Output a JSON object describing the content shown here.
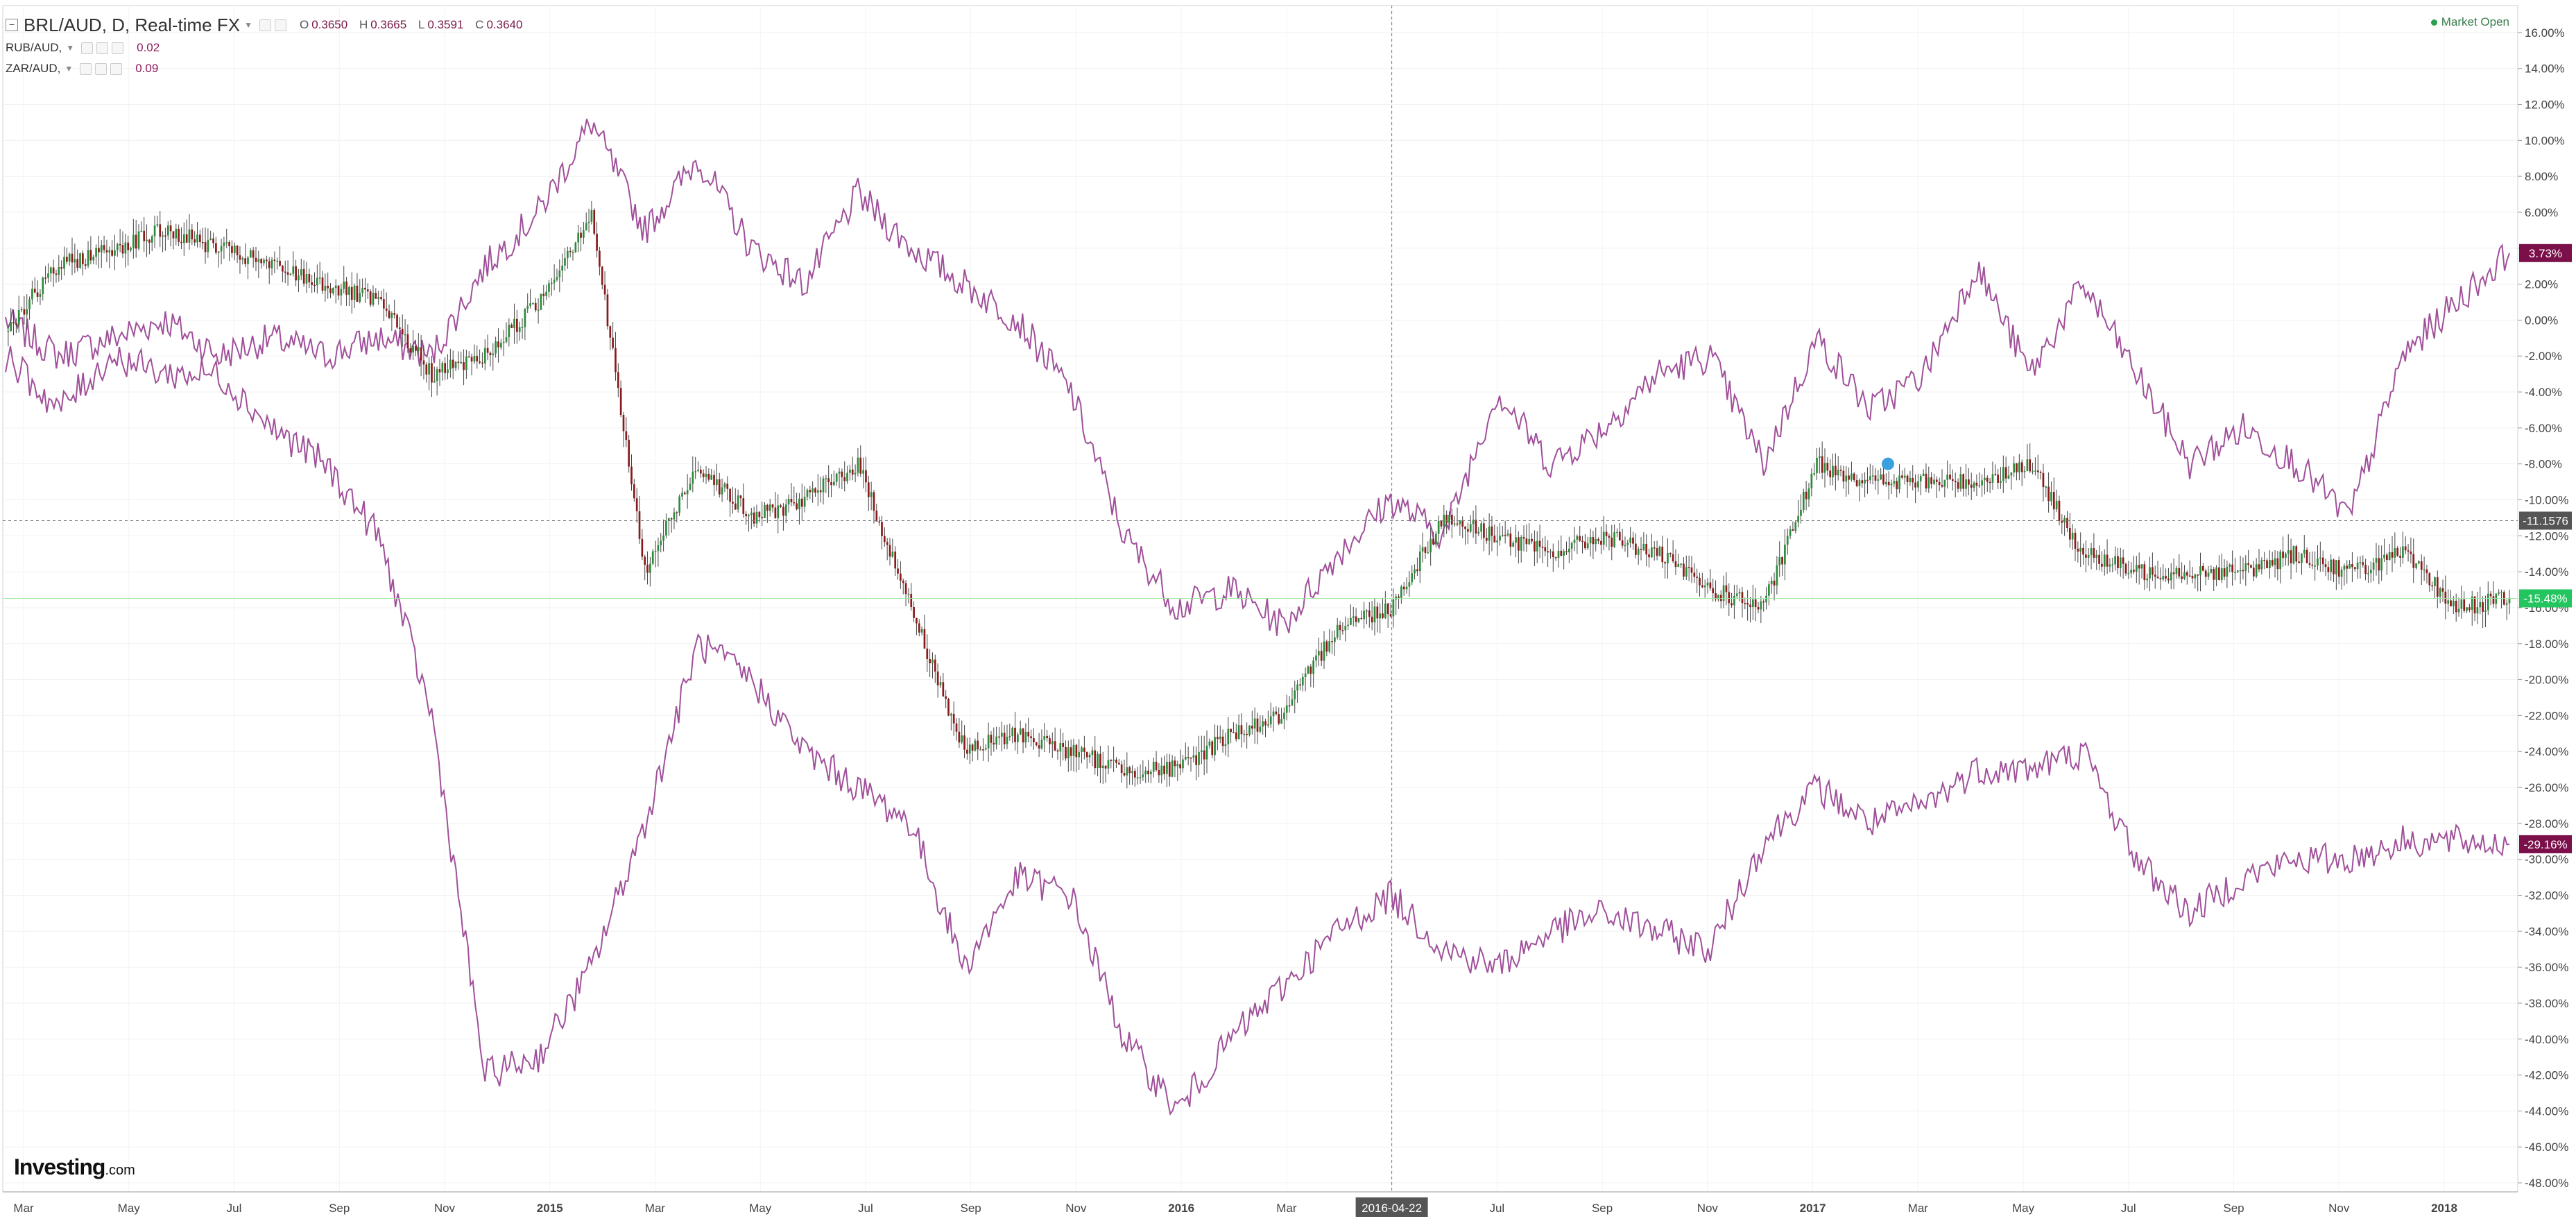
{
  "header": {
    "symbol": "BRL/AUD, D, Real-time FX",
    "ohlc": {
      "o_label": "O",
      "o": "0.3650",
      "h_label": "H",
      "h": "0.3665",
      "l_label": "L",
      "l": "0.3591",
      "c_label": "C",
      "c": "0.3640"
    },
    "compare": [
      {
        "symbol": "RUB/AUD,",
        "value": "0.02"
      },
      {
        "symbol": "ZAR/AUD,",
        "value": "0.09"
      }
    ],
    "market_status": "Market Open"
  },
  "logo": {
    "brand": "Investing",
    "suffix": ".com"
  },
  "colors": {
    "up": "#2e8b3a",
    "down": "#8b1a1a",
    "compare": "#a0509a",
    "last_price": "#22c55e",
    "compare_badge": "#7a0f4a",
    "crosshair": "#777777"
  },
  "chart_data": {
    "type": "line",
    "title": "BRL/AUD, D, Real-time FX",
    "xlabel": "",
    "ylabel": "",
    "x_tick_labels": [
      "Mar",
      "May",
      "Jul",
      "Sep",
      "Nov",
      "2015",
      "Mar",
      "May",
      "Jul",
      "Sep",
      "Nov",
      "2016",
      "Mar",
      "2016-04-22",
      "Jul",
      "Sep",
      "Nov",
      "2017",
      "Mar",
      "May",
      "Jul",
      "Sep",
      "Nov",
      "2018"
    ],
    "bold_x_ticks": [
      "2015",
      "2016",
      "2017",
      "2018"
    ],
    "y_ticks": [
      "16.00%",
      "14.00%",
      "12.00%",
      "10.00%",
      "8.00%",
      "6.00%",
      "4.00%",
      "2.00%",
      "0.00%",
      "-2.00%",
      "-4.00%",
      "-6.00%",
      "-8.00%",
      "-10.00%",
      "-12.00%",
      "-14.00%",
      "-16.00%",
      "-18.00%",
      "-20.00%",
      "-22.00%",
      "-24.00%",
      "-26.00%",
      "-28.00%",
      "-30.00%",
      "-32.00%",
      "-34.00%",
      "-36.00%",
      "-38.00%",
      "-40.00%",
      "-42.00%",
      "-44.00%",
      "-46.00%",
      "-48.00%"
    ],
    "ylim": [
      -48.5,
      17.5
    ],
    "y_unit": "%",
    "grid": true,
    "badges": [
      {
        "label": "3.73%",
        "value": 3.73,
        "series": "RUB/AUD"
      },
      {
        "label": "-11.1576",
        "value": -11.1576,
        "series": "crosshair"
      },
      {
        "label": "-15.48%",
        "value": -15.48,
        "series": "BRL/AUD"
      },
      {
        "label": "-29.16%",
        "value": -29.16,
        "series": "ZAR/AUD"
      }
    ],
    "crosshair": {
      "date_label": "2016-04-22",
      "value": -11.1576
    },
    "series": [
      {
        "name": "BRL/AUD",
        "style": "candlestick",
        "x": [
          "Mar",
          "Apr",
          "May",
          "Jun",
          "Jul",
          "Aug",
          "Sep",
          "Oct",
          "Nov",
          "Dec",
          "2015",
          "Feb",
          "Mar",
          "Apr",
          "May",
          "Jun",
          "Jul",
          "Aug",
          "Sep",
          "Oct",
          "Nov",
          "Dec",
          "2016",
          "Feb",
          "Mar",
          "Apr",
          "May",
          "Jun",
          "Jul",
          "Aug",
          "Sep",
          "Oct",
          "Nov",
          "Dec",
          "2017",
          "Feb",
          "Mar",
          "Apr",
          "May",
          "Jun",
          "Jul",
          "Aug",
          "Sep",
          "Oct",
          "Nov",
          "Dec",
          "2018",
          "Feb"
        ],
        "values": [
          -0.5,
          3,
          4,
          5,
          4,
          3,
          2,
          1,
          -3,
          -2,
          1,
          6,
          -14,
          -8,
          -11,
          -10,
          -8,
          -16,
          -24,
          -23,
          -24,
          -25,
          -25,
          -23,
          -22,
          -17,
          -16,
          -11,
          -12,
          -13,
          -12,
          -13,
          -15,
          -16,
          -8,
          -9,
          -9,
          -9,
          -8,
          -13,
          -14,
          -14,
          -14,
          -13,
          -14,
          -13,
          -16,
          -15.48
        ]
      },
      {
        "name": "RUB/AUD",
        "style": "line",
        "x": [
          "Mar",
          "Apr",
          "May",
          "Jun",
          "Jul",
          "Aug",
          "Sep",
          "Oct",
          "Nov",
          "Dec",
          "2015",
          "Feb",
          "Mar",
          "Apr",
          "May",
          "Jun",
          "Jul",
          "Aug",
          "Sep",
          "Oct",
          "Nov",
          "Dec",
          "2016",
          "Feb",
          "Mar",
          "Apr",
          "May",
          "Jun",
          "Jul",
          "Aug",
          "Sep",
          "Oct",
          "Nov",
          "Dec",
          "2017",
          "Feb",
          "Mar",
          "Apr",
          "May",
          "Jun",
          "Jul",
          "Aug",
          "Sep",
          "Oct",
          "Nov",
          "Dec",
          "2018",
          "Feb"
        ],
        "values": [
          0,
          -2,
          -1,
          0,
          -2,
          -1,
          -2,
          -1,
          -2,
          3,
          6,
          11,
          5,
          9,
          4,
          2,
          7,
          4,
          2,
          0,
          -4,
          -12,
          -16,
          -15,
          -17,
          -13,
          -10,
          -12,
          -4,
          -8,
          -6,
          -3,
          -2,
          -8,
          -1,
          -5,
          -3,
          3,
          -3,
          2,
          -3,
          -8,
          -6,
          -8,
          -11,
          -2,
          1,
          3.73
        ]
      },
      {
        "name": "ZAR/AUD",
        "style": "line",
        "x": [
          "Mar",
          "Apr",
          "May",
          "Jun",
          "Jul",
          "Aug",
          "Sep",
          "Oct",
          "Nov",
          "Dec",
          "2015",
          "Feb",
          "Mar",
          "Apr",
          "May",
          "Jun",
          "Jul",
          "Aug",
          "Sep",
          "Oct",
          "Nov",
          "Dec",
          "2016",
          "Feb",
          "Mar",
          "Apr",
          "May",
          "Jun",
          "Jul",
          "Aug",
          "Sep",
          "Oct",
          "Nov",
          "Dec",
          "2017",
          "Feb",
          "Mar",
          "Apr",
          "May",
          "Jun",
          "Jul",
          "Aug",
          "Sep",
          "Oct",
          "Nov",
          "Dec",
          "2018",
          "Feb"
        ],
        "values": [
          -2,
          -5,
          -2,
          -3,
          -3,
          -6,
          -8,
          -12,
          -22,
          -42,
          -41,
          -36,
          -28,
          -18,
          -20,
          -24,
          -26,
          -28,
          -36,
          -31,
          -32,
          -40,
          -44,
          -40,
          -37,
          -34,
          -32,
          -35,
          -36,
          -34,
          -33,
          -34,
          -35,
          -29,
          -26,
          -28,
          -27,
          -25,
          -25,
          -24,
          -30,
          -33,
          -31,
          -30,
          -30,
          -29,
          -29,
          -29.16
        ]
      }
    ]
  }
}
